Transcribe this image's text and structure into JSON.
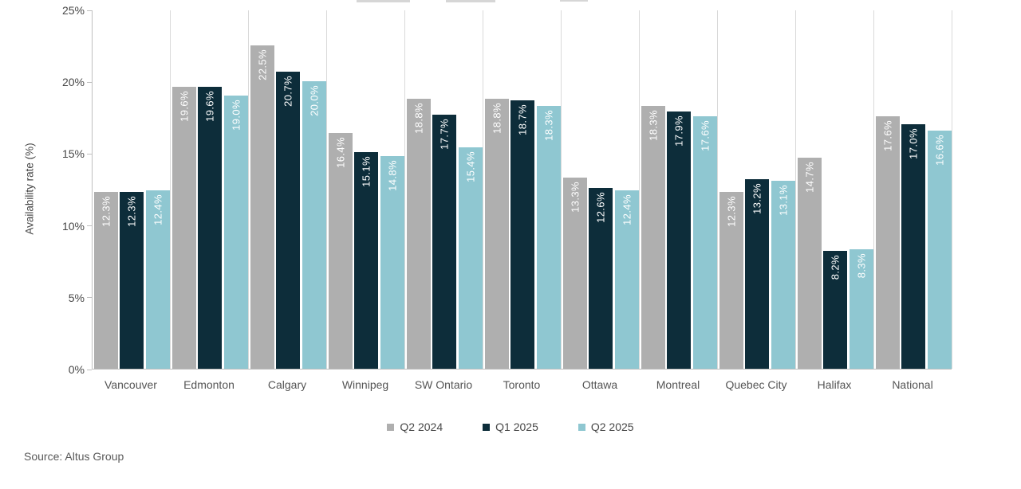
{
  "chart_data": {
    "type": "bar",
    "title": "",
    "ylabel": "Availability rate (%)",
    "ylim": [
      0,
      25
    ],
    "ytick_labels": [
      "0%",
      "5%",
      "10%",
      "15%",
      "20%",
      "25%"
    ],
    "ytick_values": [
      0,
      5,
      10,
      15,
      20,
      25
    ],
    "grid": "vertical-category-separators-only",
    "legend_position": "bottom-center",
    "categories": [
      "Vancouver",
      "Edmonton",
      "Calgary",
      "Winnipeg",
      "SW Ontario",
      "Toronto",
      "Ottawa",
      "Montreal",
      "Quebec City",
      "Halifax",
      "National"
    ],
    "series": [
      {
        "name": "Q2 2024",
        "color": "#AFAFAF",
        "values": [
          12.3,
          19.6,
          22.5,
          16.4,
          18.8,
          18.8,
          13.3,
          18.3,
          12.3,
          14.7,
          17.6
        ],
        "labels": [
          "12.3%",
          "19.6%",
          "22.5%",
          "16.4%",
          "18.8%",
          "18.8%",
          "13.3%",
          "18.3%",
          "12.3%",
          "14.7%",
          "17.6%"
        ]
      },
      {
        "name": "Q1 2025",
        "color": "#0D2D3A",
        "values": [
          12.3,
          19.6,
          20.7,
          15.1,
          17.7,
          18.7,
          12.6,
          17.9,
          13.2,
          8.2,
          17.0
        ],
        "labels": [
          "12.3%",
          "19.6%",
          "20.7%",
          "15.1%",
          "17.7%",
          "18.7%",
          "12.6%",
          "17.9%",
          "13.2%",
          "8.2%",
          "17.0%"
        ]
      },
      {
        "name": "Q2 2025",
        "color": "#8FC7D1",
        "values": [
          12.4,
          19.0,
          20.0,
          14.8,
          15.4,
          18.3,
          12.4,
          17.6,
          13.1,
          8.3,
          16.6
        ],
        "labels": [
          "12.4%",
          "19.0%",
          "20.0%",
          "14.8%",
          "15.4%",
          "18.3%",
          "12.4%",
          "17.6%",
          "13.1%",
          "8.3%",
          "16.6%"
        ]
      }
    ],
    "bar_value_label_style": "white, rotated 90deg, inside top of bar"
  },
  "source": {
    "label": "Source: Altus Group"
  },
  "colors": {
    "q2_2024_bar": "#AFAFAF",
    "q1_2025_bar": "#0D2D3A",
    "q2_2025_bar": "#8FC7D1",
    "axis_line": "#BFBFBF",
    "category_separator": "#D9D9D9",
    "axis_text": "#474747",
    "bar_value_text": "#FFFFFF"
  }
}
